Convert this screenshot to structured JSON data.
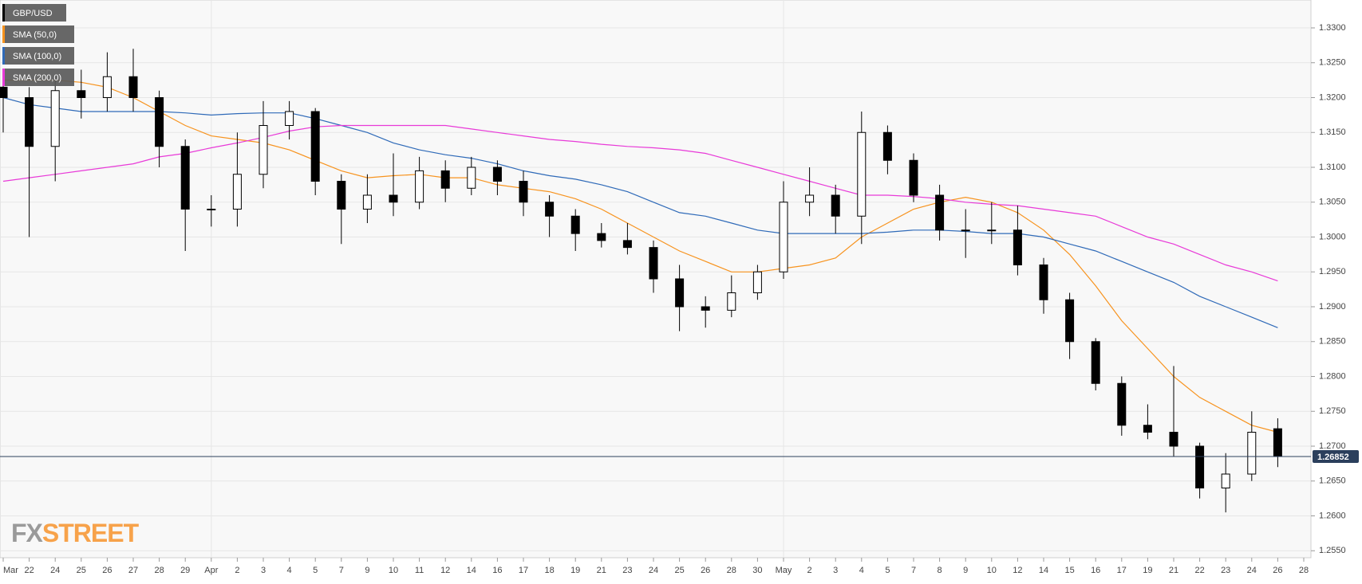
{
  "chart_data": {
    "type": "candlestick",
    "symbol": "GBP/USD",
    "categories": [
      "Mar",
      "22",
      "24",
      "25",
      "26",
      "27",
      "28",
      "29",
      "Apr",
      "2",
      "3",
      "4",
      "5",
      "7",
      "9",
      "10",
      "11",
      "12",
      "14",
      "16",
      "17",
      "18",
      "19",
      "21",
      "23",
      "24",
      "25",
      "26",
      "28",
      "30",
      "May",
      "2",
      "3",
      "4",
      "5",
      "7",
      "8",
      "9",
      "10",
      "12",
      "14",
      "15",
      "16",
      "17",
      "19",
      "21",
      "22",
      "23",
      "24",
      "26",
      "28"
    ],
    "open": [
      1.3215,
      1.32,
      1.313,
      1.321,
      1.32,
      1.323,
      1.32,
      1.313,
      1.304,
      1.304,
      1.309,
      1.316,
      1.318,
      1.308,
      1.304,
      1.306,
      1.305,
      1.3095,
      1.307,
      1.31,
      1.308,
      1.305,
      1.303,
      1.3005,
      1.2995,
      1.2985,
      1.294,
      1.29,
      1.2895,
      1.292,
      1.295,
      1.305,
      1.306,
      1.303,
      1.315,
      1.311,
      1.306,
      1.301,
      1.301,
      1.301,
      1.296,
      1.291,
      1.285,
      1.279,
      1.273,
      1.272,
      1.27,
      1.264,
      1.266,
      1.2725,
      null
    ],
    "high": [
      1.323,
      1.3215,
      1.323,
      1.324,
      1.3265,
      1.327,
      1.321,
      1.314,
      1.306,
      1.315,
      1.3195,
      1.3195,
      1.3185,
      1.309,
      1.309,
      1.312,
      1.3115,
      1.311,
      1.3115,
      1.311,
      1.3095,
      1.306,
      1.304,
      1.302,
      1.302,
      1.2995,
      1.296,
      1.2915,
      1.2945,
      1.296,
      1.308,
      1.31,
      1.3075,
      1.318,
      1.316,
      1.312,
      1.3075,
      1.304,
      1.305,
      1.3045,
      1.297,
      1.292,
      1.2855,
      1.28,
      1.276,
      1.2815,
      1.2705,
      1.269,
      1.275,
      1.274,
      null
    ],
    "low": [
      1.315,
      1.3,
      1.308,
      1.317,
      1.318,
      1.318,
      1.31,
      1.298,
      1.3015,
      1.3015,
      1.307,
      1.314,
      1.306,
      1.299,
      1.302,
      1.303,
      1.304,
      1.305,
      1.306,
      1.306,
      1.303,
      1.3,
      1.298,
      1.2985,
      1.2975,
      1.292,
      1.2865,
      1.287,
      1.2885,
      1.291,
      1.294,
      1.303,
      1.3005,
      1.299,
      1.309,
      1.305,
      1.2995,
      1.297,
      1.299,
      1.2945,
      1.289,
      1.2825,
      1.278,
      1.2715,
      1.271,
      1.2685,
      1.2625,
      1.2605,
      1.265,
      1.267,
      null
    ],
    "close": [
      1.32,
      1.313,
      1.321,
      1.32,
      1.323,
      1.32,
      1.313,
      1.304,
      1.304,
      1.309,
      1.316,
      1.318,
      1.308,
      1.304,
      1.306,
      1.305,
      1.3095,
      1.307,
      1.31,
      1.308,
      1.305,
      1.303,
      1.3005,
      1.2995,
      1.2985,
      1.294,
      1.29,
      1.2895,
      1.292,
      1.295,
      1.305,
      1.306,
      1.303,
      1.315,
      1.311,
      1.306,
      1.301,
      1.301,
      1.301,
      1.296,
      1.291,
      1.285,
      1.279,
      1.273,
      1.272,
      1.27,
      1.264,
      1.266,
      1.272,
      1.26852,
      null
    ],
    "series": [
      {
        "name": "SMA (50,0)",
        "color": "#f7931e",
        "values": [
          1.3225,
          1.3225,
          1.3225,
          1.3222,
          1.3215,
          1.32,
          1.318,
          1.316,
          1.3145,
          1.314,
          1.3135,
          1.3125,
          1.311,
          1.3095,
          1.3085,
          1.3088,
          1.309,
          1.3085,
          1.3085,
          1.3075,
          1.307,
          1.3065,
          1.3055,
          1.304,
          1.302,
          1.3,
          1.298,
          1.2965,
          1.295,
          1.295,
          1.2955,
          1.296,
          1.297,
          1.3,
          1.302,
          1.304,
          1.305,
          1.3057,
          1.305,
          1.3035,
          1.301,
          1.2975,
          1.293,
          1.288,
          1.284,
          1.28,
          1.277,
          1.275,
          1.273,
          1.272,
          null
        ]
      },
      {
        "name": "SMA (100,0)",
        "color": "#2f6ab8",
        "values": [
          1.32,
          1.319,
          1.3185,
          1.318,
          1.318,
          1.318,
          1.318,
          1.3178,
          1.3175,
          1.3177,
          1.3178,
          1.3178,
          1.317,
          1.316,
          1.315,
          1.3135,
          1.3125,
          1.3118,
          1.3113,
          1.3105,
          1.3095,
          1.3088,
          1.3083,
          1.3075,
          1.3065,
          1.305,
          1.3035,
          1.303,
          1.302,
          1.301,
          1.3005,
          1.3005,
          1.3005,
          1.3005,
          1.3007,
          1.301,
          1.301,
          1.3008,
          1.3005,
          1.3005,
          1.3,
          1.299,
          1.298,
          1.2965,
          1.295,
          1.2935,
          1.2915,
          1.29,
          1.2885,
          1.287,
          null
        ]
      },
      {
        "name": "SMA (200,0)",
        "color": "#e83ad8",
        "values": [
          1.308,
          1.3085,
          1.309,
          1.3095,
          1.31,
          1.3105,
          1.3115,
          1.312,
          1.3128,
          1.3135,
          1.3143,
          1.3152,
          1.3158,
          1.316,
          1.316,
          1.316,
          1.316,
          1.316,
          1.3155,
          1.315,
          1.3145,
          1.314,
          1.3137,
          1.3133,
          1.313,
          1.3128,
          1.3125,
          1.312,
          1.311,
          1.31,
          1.309,
          1.308,
          1.307,
          1.306,
          1.306,
          1.3058,
          1.3055,
          1.305,
          1.3047,
          1.3045,
          1.304,
          1.3035,
          1.303,
          1.3015,
          1.3,
          1.299,
          1.2975,
          1.296,
          1.295,
          1.2937,
          null
        ]
      }
    ],
    "current_price": 1.26852,
    "ylim": [
      1.254,
      1.334
    ],
    "yticks": [
      {
        "value": 1.255,
        "label": "1.2550"
      },
      {
        "value": 1.26,
        "label": "1.2600"
      },
      {
        "value": 1.265,
        "label": "1.2650"
      },
      {
        "value": 1.27,
        "label": "1.2700"
      },
      {
        "value": 1.275,
        "label": "1.2750"
      },
      {
        "value": 1.28,
        "label": "1.2800"
      },
      {
        "value": 1.285,
        "label": "1.2850"
      },
      {
        "value": 1.29,
        "label": "1.2900"
      },
      {
        "value": 1.295,
        "label": "1.2950"
      },
      {
        "value": 1.3,
        "label": "1.3000"
      },
      {
        "value": 1.305,
        "label": "1.3050"
      },
      {
        "value": 1.31,
        "label": "1.3100"
      },
      {
        "value": 1.315,
        "label": "1.3150"
      },
      {
        "value": 1.32,
        "label": "1.3200"
      },
      {
        "value": 1.325,
        "label": "1.3250"
      },
      {
        "value": 1.33,
        "label": "1.3300"
      }
    ],
    "grid": true,
    "watermark": [
      "FX",
      "STREET"
    ]
  }
}
